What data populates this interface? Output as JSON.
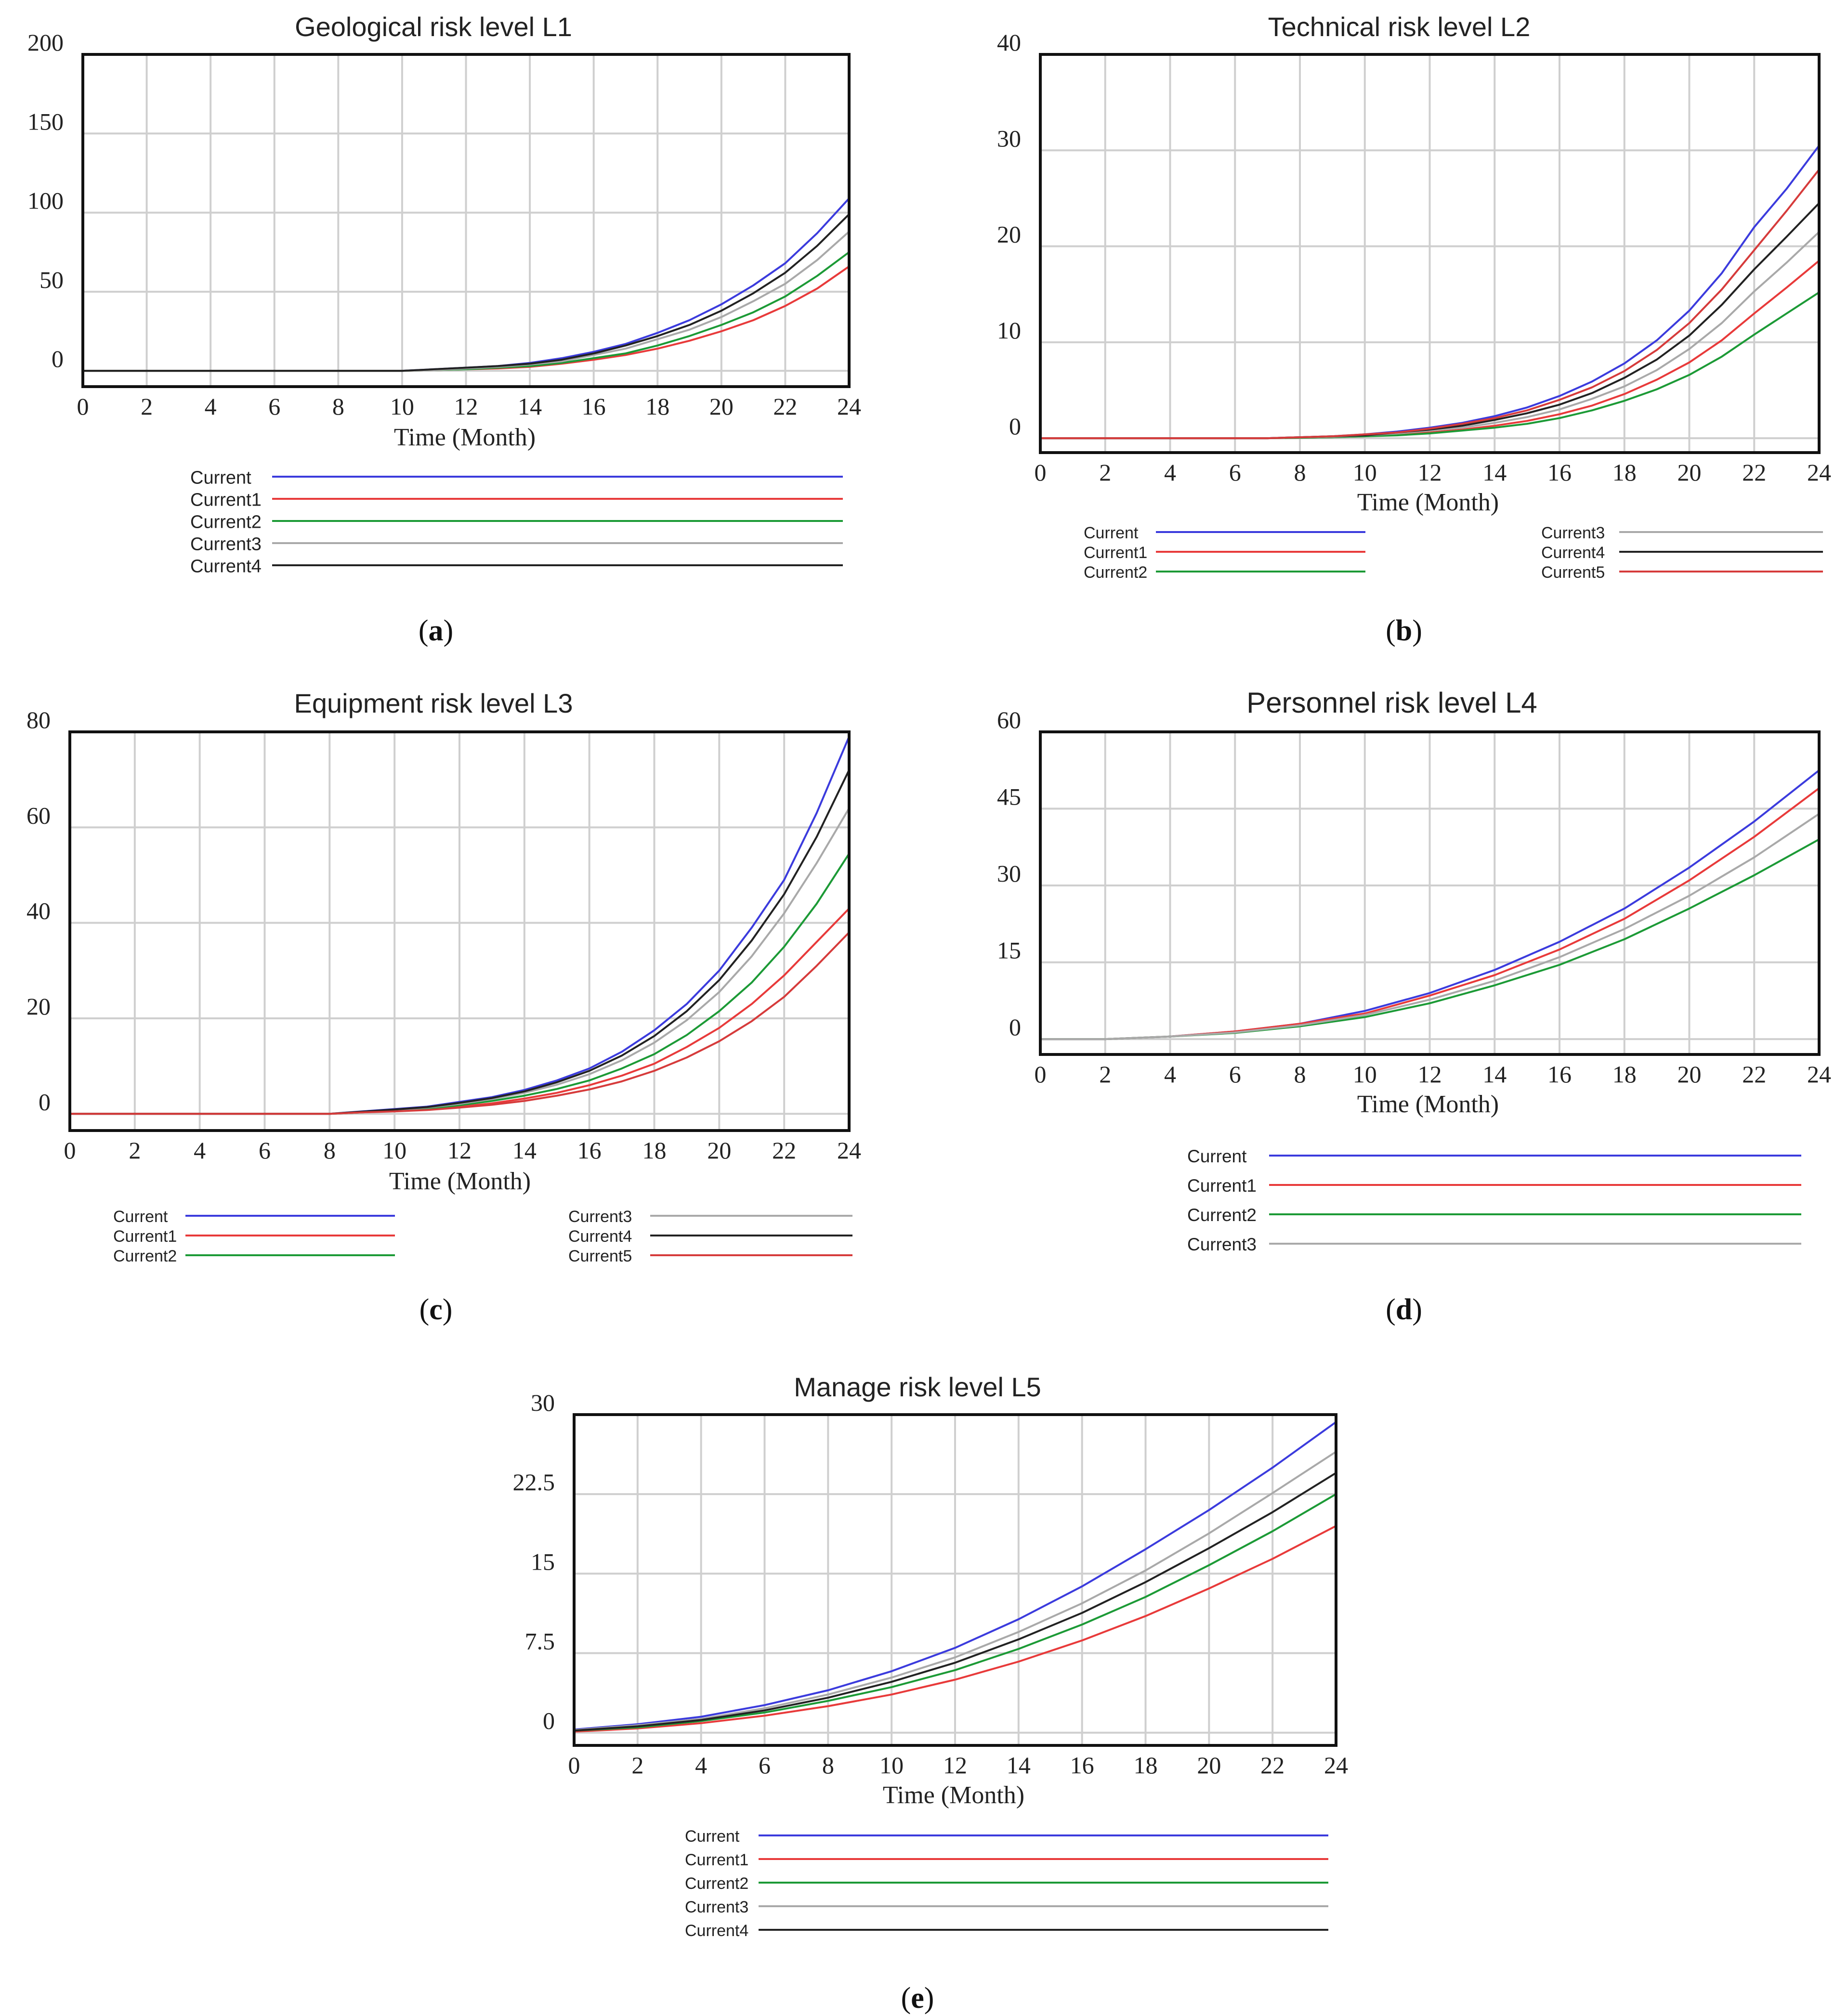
{
  "figure": {
    "panels": [
      {
        "id": "a",
        "label": "a"
      },
      {
        "id": "b",
        "label": "b"
      },
      {
        "id": "c",
        "label": "c"
      },
      {
        "id": "d",
        "label": "d"
      },
      {
        "id": "e",
        "label": "e"
      }
    ]
  },
  "colors": {
    "Current": "#3b3bdd",
    "Current1": "#e83a3a",
    "Current2": "#1c9a36",
    "Current3": "#a9a9a9",
    "Current4": "#222222",
    "Current5": "#d63b3b",
    "grid": "#cfcfcf",
    "frame": "#111111"
  },
  "chart_data": [
    {
      "panel": "a",
      "type": "line",
      "title": "Geological risk level L1",
      "xlabel": "Time (Month)",
      "ylabel": "",
      "xlim": [
        0,
        24
      ],
      "ylim": [
        -10,
        200
      ],
      "xticks": [
        0,
        2,
        4,
        6,
        8,
        10,
        12,
        14,
        16,
        18,
        20,
        22,
        24
      ],
      "yticks": [
        0,
        50,
        100,
        150,
        200
      ],
      "ytick_labels": [
        "0",
        "50",
        "100",
        "150",
        "200"
      ],
      "grid": true,
      "legend_layout": "one-column",
      "x": [
        0,
        2,
        4,
        6,
        8,
        10,
        11,
        12,
        13,
        14,
        15,
        16,
        17,
        18,
        19,
        20,
        21,
        22,
        23,
        24
      ],
      "series": [
        {
          "name": "Current",
          "values": [
            0,
            0,
            0,
            0,
            0,
            0,
            1,
            2,
            3,
            5,
            8,
            12,
            17,
            24,
            32,
            42,
            54,
            68,
            87,
            109
          ]
        },
        {
          "name": "Current1",
          "values": [
            0,
            0,
            0,
            0,
            0,
            0,
            0.5,
            1,
            1.5,
            2.5,
            4.5,
            7,
            10,
            14,
            19,
            25,
            32,
            41,
            52,
            66
          ]
        },
        {
          "name": "Current2",
          "values": [
            0,
            0,
            0,
            0,
            0,
            0,
            0.5,
            1,
            2,
            3,
            5,
            8,
            11,
            16,
            22,
            29,
            37,
            47,
            60,
            75
          ]
        },
        {
          "name": "Current3",
          "values": [
            0,
            0,
            0,
            0,
            0,
            0,
            0.5,
            1.5,
            2.5,
            4,
            6,
            10,
            14,
            20,
            26,
            34,
            44,
            55,
            70,
            88
          ]
        },
        {
          "name": "Current4",
          "values": [
            0,
            0,
            0,
            0,
            0,
            0,
            1,
            2,
            3,
            4.5,
            7,
            11,
            16,
            22,
            29,
            38,
            49,
            62,
            79,
            99
          ]
        }
      ]
    },
    {
      "panel": "b",
      "type": "line",
      "title": "Technical risk level L2",
      "xlabel": "Time (Month)",
      "ylabel": "",
      "xlim": [
        0,
        24
      ],
      "ylim": [
        -1.5,
        40
      ],
      "xticks": [
        0,
        2,
        4,
        6,
        8,
        10,
        12,
        14,
        16,
        18,
        20,
        22,
        24
      ],
      "yticks": [
        0,
        10,
        20,
        30,
        40
      ],
      "ytick_labels": [
        "0",
        "10",
        "20",
        "30",
        "40"
      ],
      "grid": true,
      "legend_layout": "two-columns",
      "x": [
        0,
        2,
        4,
        6,
        7,
        8,
        9,
        10,
        11,
        12,
        13,
        14,
        15,
        16,
        17,
        18,
        19,
        20,
        21,
        22,
        23,
        24
      ],
      "series": [
        {
          "name": "Current",
          "values": [
            0,
            0,
            0,
            0,
            0,
            0.1,
            0.2,
            0.4,
            0.7,
            1.1,
            1.6,
            2.3,
            3.2,
            4.4,
            5.9,
            7.8,
            10.2,
            13.3,
            17.2,
            22,
            26,
            30.5
          ]
        },
        {
          "name": "Current1",
          "values": [
            0,
            0,
            0,
            0,
            0,
            0.05,
            0.1,
            0.2,
            0.4,
            0.6,
            0.9,
            1.3,
            1.8,
            2.5,
            3.4,
            4.6,
            6.1,
            7.9,
            10.2,
            13,
            15.7,
            18.5
          ]
        },
        {
          "name": "Current2",
          "values": [
            0,
            0,
            0,
            0,
            0,
            0.05,
            0.1,
            0.2,
            0.3,
            0.5,
            0.8,
            1.1,
            1.5,
            2.1,
            2.9,
            3.9,
            5.1,
            6.6,
            8.5,
            10.8,
            13,
            15.2
          ]
        },
        {
          "name": "Current3",
          "values": [
            0,
            0,
            0,
            0,
            0,
            0.1,
            0.15,
            0.3,
            0.5,
            0.8,
            1.1,
            1.6,
            2.2,
            3.0,
            4.1,
            5.4,
            7.1,
            9.3,
            12,
            15.3,
            18.3,
            21.5
          ]
        },
        {
          "name": "Current4",
          "values": [
            0,
            0,
            0,
            0,
            0,
            0.1,
            0.2,
            0.3,
            0.6,
            0.9,
            1.3,
            1.9,
            2.6,
            3.5,
            4.7,
            6.3,
            8.2,
            10.7,
            13.9,
            17.6,
            21,
            24.5
          ]
        },
        {
          "name": "Current5",
          "values": [
            0,
            0,
            0,
            0,
            0,
            0.1,
            0.2,
            0.4,
            0.6,
            1.0,
            1.5,
            2.1,
            2.9,
            4.0,
            5.3,
            7.0,
            9.2,
            12,
            15.5,
            19.6,
            23.7,
            28
          ]
        }
      ]
    },
    {
      "panel": "c",
      "type": "line",
      "title": "Equipment risk level L3",
      "xlabel": "Time (Month)",
      "ylabel": "",
      "xlim": [
        0,
        24
      ],
      "ylim": [
        -3.5,
        80
      ],
      "xticks": [
        0,
        2,
        4,
        6,
        8,
        10,
        12,
        14,
        16,
        18,
        20,
        22,
        24
      ],
      "yticks": [
        0,
        20,
        40,
        60,
        80
      ],
      "ytick_labels": [
        "0",
        "20",
        "40",
        "60",
        "80"
      ],
      "grid": true,
      "legend_layout": "two-columns",
      "x": [
        0,
        2,
        4,
        6,
        8,
        9,
        10,
        11,
        12,
        13,
        14,
        15,
        16,
        17,
        18,
        19,
        20,
        21,
        22,
        23,
        24
      ],
      "series": [
        {
          "name": "Current",
          "values": [
            0,
            0,
            0,
            0,
            0,
            0.5,
            1,
            1.5,
            2.5,
            3.5,
            5,
            7,
            9.5,
            13,
            17.5,
            23,
            30,
            39,
            49,
            63,
            79
          ]
        },
        {
          "name": "Current1",
          "values": [
            0,
            0,
            0,
            0,
            0,
            0.3,
            0.6,
            1,
            1.5,
            2.2,
            3.2,
            4.4,
            6,
            8,
            10.5,
            14,
            18,
            23,
            29,
            36,
            43
          ]
        },
        {
          "name": "Current2",
          "values": [
            0,
            0,
            0,
            0,
            0,
            0.3,
            0.7,
            1.1,
            1.8,
            2.7,
            3.8,
            5.2,
            7,
            9.5,
            12.5,
            16.5,
            21.5,
            27.5,
            35,
            44,
            54.5
          ]
        },
        {
          "name": "Current3",
          "values": [
            0,
            0,
            0,
            0,
            0,
            0.4,
            0.8,
            1.3,
            2.1,
            3.1,
            4.4,
            6.1,
            8.3,
            11.2,
            14.9,
            19.6,
            25.5,
            33,
            42,
            52.5,
            64
          ]
        },
        {
          "name": "Current4",
          "values": [
            0,
            0,
            0,
            0,
            0,
            0.45,
            0.9,
            1.4,
            2.3,
            3.3,
            4.7,
            6.6,
            9,
            12.2,
            16.3,
            21.5,
            28,
            36.3,
            46,
            58,
            72
          ]
        },
        {
          "name": "Current5",
          "values": [
            0,
            0,
            0,
            0,
            0,
            0.3,
            0.5,
            0.8,
            1.3,
            1.9,
            2.7,
            3.8,
            5.1,
            6.8,
            9,
            11.8,
            15.2,
            19.4,
            24.5,
            31,
            38
          ]
        }
      ]
    },
    {
      "panel": "d",
      "type": "line",
      "title": "Personnel risk level L4",
      "xlabel": "Time (Month)",
      "ylabel": "",
      "xlim": [
        0,
        24
      ],
      "ylim": [
        -3,
        60
      ],
      "xticks": [
        0,
        2,
        4,
        6,
        8,
        10,
        12,
        14,
        16,
        18,
        20,
        22,
        24
      ],
      "yticks": [
        0,
        15,
        30,
        45,
        60
      ],
      "ytick_labels": [
        "0",
        "15",
        "30",
        "45",
        "60"
      ],
      "grid": true,
      "legend_layout": "one-column",
      "x": [
        0,
        2,
        4,
        6,
        8,
        10,
        12,
        14,
        16,
        18,
        20,
        22,
        24
      ],
      "series": [
        {
          "name": "Current",
          "values": [
            0,
            0,
            0.5,
            1.5,
            3,
            5.5,
            9,
            13.5,
            19,
            25.5,
            33.5,
            42.5,
            52.5
          ]
        },
        {
          "name": "Current1",
          "values": [
            0,
            0,
            0.5,
            1.5,
            3,
            5,
            8.5,
            12.5,
            17.5,
            23.5,
            31,
            39.5,
            49
          ]
        },
        {
          "name": "Current2",
          "values": [
            0,
            0,
            0.5,
            1.2,
            2.5,
            4.3,
            7,
            10.5,
            14.5,
            19.5,
            25.5,
            32,
            39
          ]
        },
        {
          "name": "Current3",
          "values": [
            0,
            0,
            0.5,
            1.3,
            2.7,
            4.7,
            7.7,
            11.4,
            16,
            21.5,
            28,
            35.5,
            44
          ]
        }
      ]
    },
    {
      "panel": "e",
      "type": "line",
      "title": "Manage risk level L5",
      "xlabel": "Time (Month)",
      "ylabel": "",
      "xlim": [
        0,
        24
      ],
      "ylim": [
        -1.2,
        30
      ],
      "xticks": [
        0,
        2,
        4,
        6,
        8,
        10,
        12,
        14,
        16,
        18,
        20,
        22,
        24
      ],
      "yticks": [
        0,
        7.5,
        15,
        22.5,
        30
      ],
      "ytick_labels": [
        "0",
        "7.5",
        "15",
        "22.5",
        "30"
      ],
      "grid": true,
      "legend_layout": "one-column",
      "x": [
        0,
        2,
        4,
        6,
        8,
        10,
        12,
        14,
        16,
        18,
        20,
        22,
        24
      ],
      "series": [
        {
          "name": "Current",
          "values": [
            0.3,
            0.8,
            1.5,
            2.6,
            4,
            5.8,
            8,
            10.7,
            13.8,
            17.3,
            21,
            25,
            29.3
          ]
        },
        {
          "name": "Current1",
          "values": [
            0.1,
            0.4,
            0.9,
            1.6,
            2.5,
            3.6,
            5,
            6.7,
            8.7,
            11,
            13.6,
            16.4,
            19.5
          ]
        },
        {
          "name": "Current2",
          "values": [
            0.2,
            0.5,
            1.1,
            1.9,
            3,
            4.3,
            5.9,
            7.9,
            10.2,
            12.8,
            15.8,
            19,
            22.5
          ]
        },
        {
          "name": "Current3",
          "values": [
            0.25,
            0.7,
            1.3,
            2.3,
            3.6,
            5.2,
            7.1,
            9.5,
            12.2,
            15.3,
            18.8,
            22.6,
            26.5
          ]
        },
        {
          "name": "Current4",
          "values": [
            0.2,
            0.6,
            1.2,
            2.1,
            3.3,
            4.8,
            6.6,
            8.8,
            11.3,
            14.2,
            17.4,
            20.8,
            24.5
          ]
        }
      ]
    }
  ]
}
